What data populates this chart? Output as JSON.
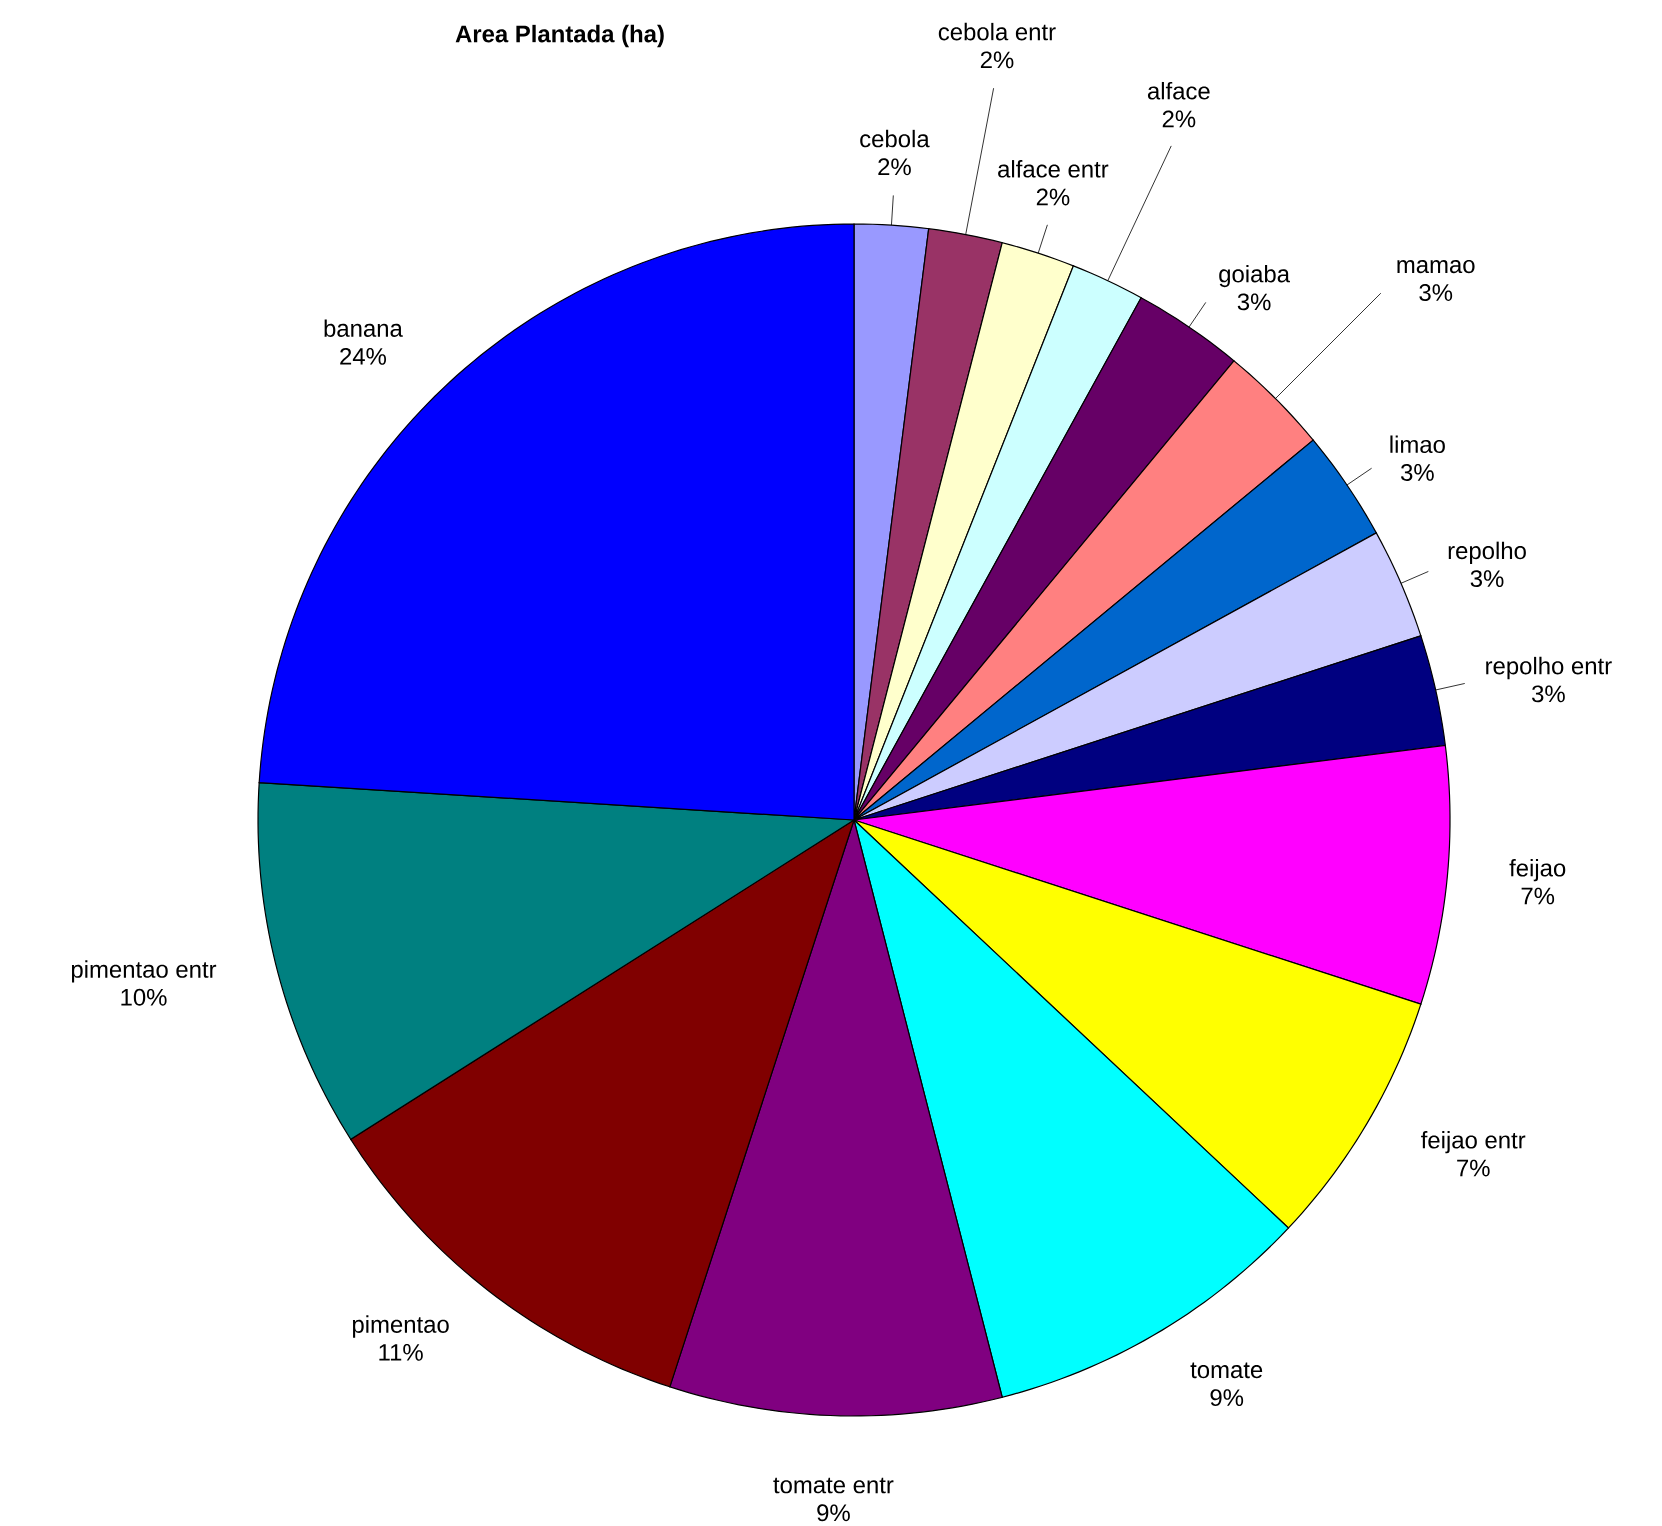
{
  "chart_data": {
    "type": "pie",
    "title": "Area Plantada (ha)",
    "categories": [
      "cebola",
      "cebola entr",
      "alface entr",
      "alface",
      "goiaba",
      "mamao",
      "limao",
      "repolho",
      "repolho entr",
      "feijao",
      "feijao entr",
      "tomate",
      "tomate entr",
      "pimentao",
      "pimentao entr",
      "banana"
    ],
    "values": [
      2,
      2,
      2,
      2,
      3,
      3,
      3,
      3,
      3,
      7,
      7,
      9,
      9,
      11,
      10,
      24
    ],
    "value_labels": [
      "2%",
      "2%",
      "2%",
      "2%",
      "3%",
      "3%",
      "3%",
      "3%",
      "3%",
      "7%",
      "7%",
      "9%",
      "9%",
      "11%",
      "10%",
      "24%"
    ],
    "colors": [
      "#9999ff",
      "#993366",
      "#ffffcc",
      "#ccffff",
      "#660066",
      "#ff8080",
      "#0066cc",
      "#ccccff",
      "#000080",
      "#ff00ff",
      "#ffff00",
      "#00ffff",
      "#800080",
      "#800000",
      "#008080",
      "#0000ff"
    ]
  }
}
